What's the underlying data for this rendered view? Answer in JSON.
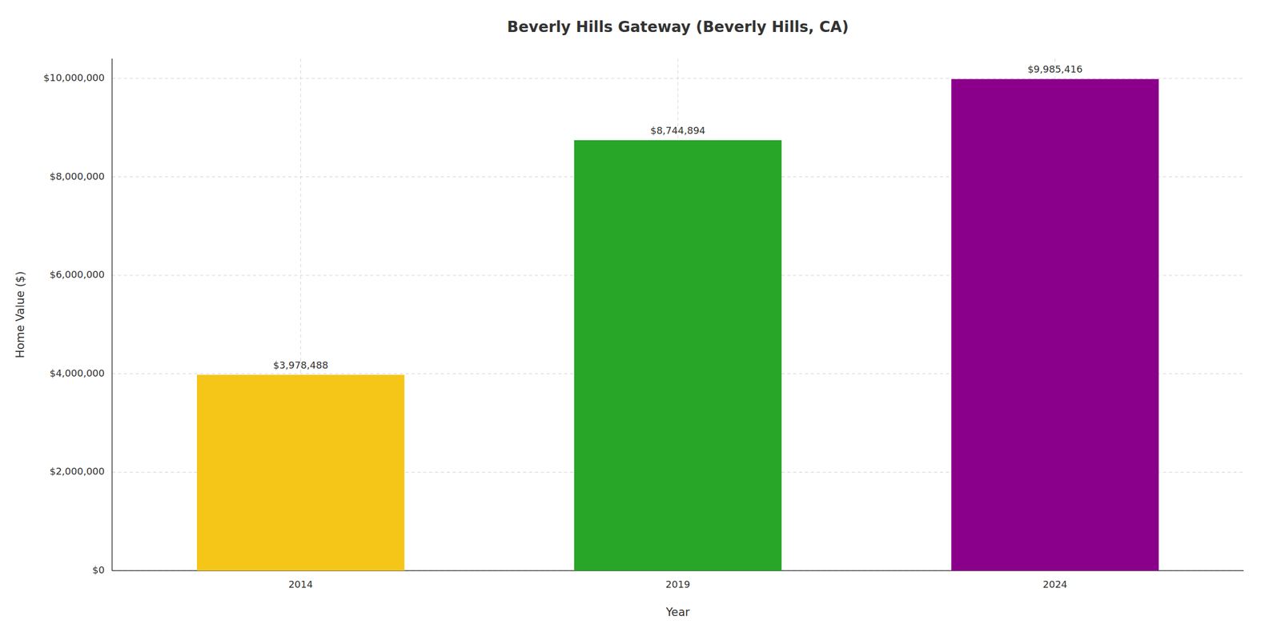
{
  "chart_data": {
    "type": "bar",
    "title": "Beverly Hills Gateway (Beverly Hills, CA)",
    "xlabel": "Year",
    "ylabel": "Home Value ($)",
    "categories": [
      "2014",
      "2019",
      "2024"
    ],
    "values": [
      3978488,
      8744894,
      9985416
    ],
    "value_labels": [
      "$3,978,488",
      "$8,744,894",
      "$9,985,416"
    ],
    "colors": [
      "#F5C518",
      "#27A627",
      "#8B008B"
    ],
    "ylim": [
      0,
      10400000
    ],
    "yticks": [
      {
        "value": 0,
        "label": "$0"
      },
      {
        "value": 2000000,
        "label": "$2,000,000"
      },
      {
        "value": 4000000,
        "label": "$4,000,000"
      },
      {
        "value": 6000000,
        "label": "$6,000,000"
      },
      {
        "value": 8000000,
        "label": "$8,000,000"
      },
      {
        "value": 10000000,
        "label": "$10,000,000"
      }
    ],
    "grid": true,
    "data_labels": true
  }
}
